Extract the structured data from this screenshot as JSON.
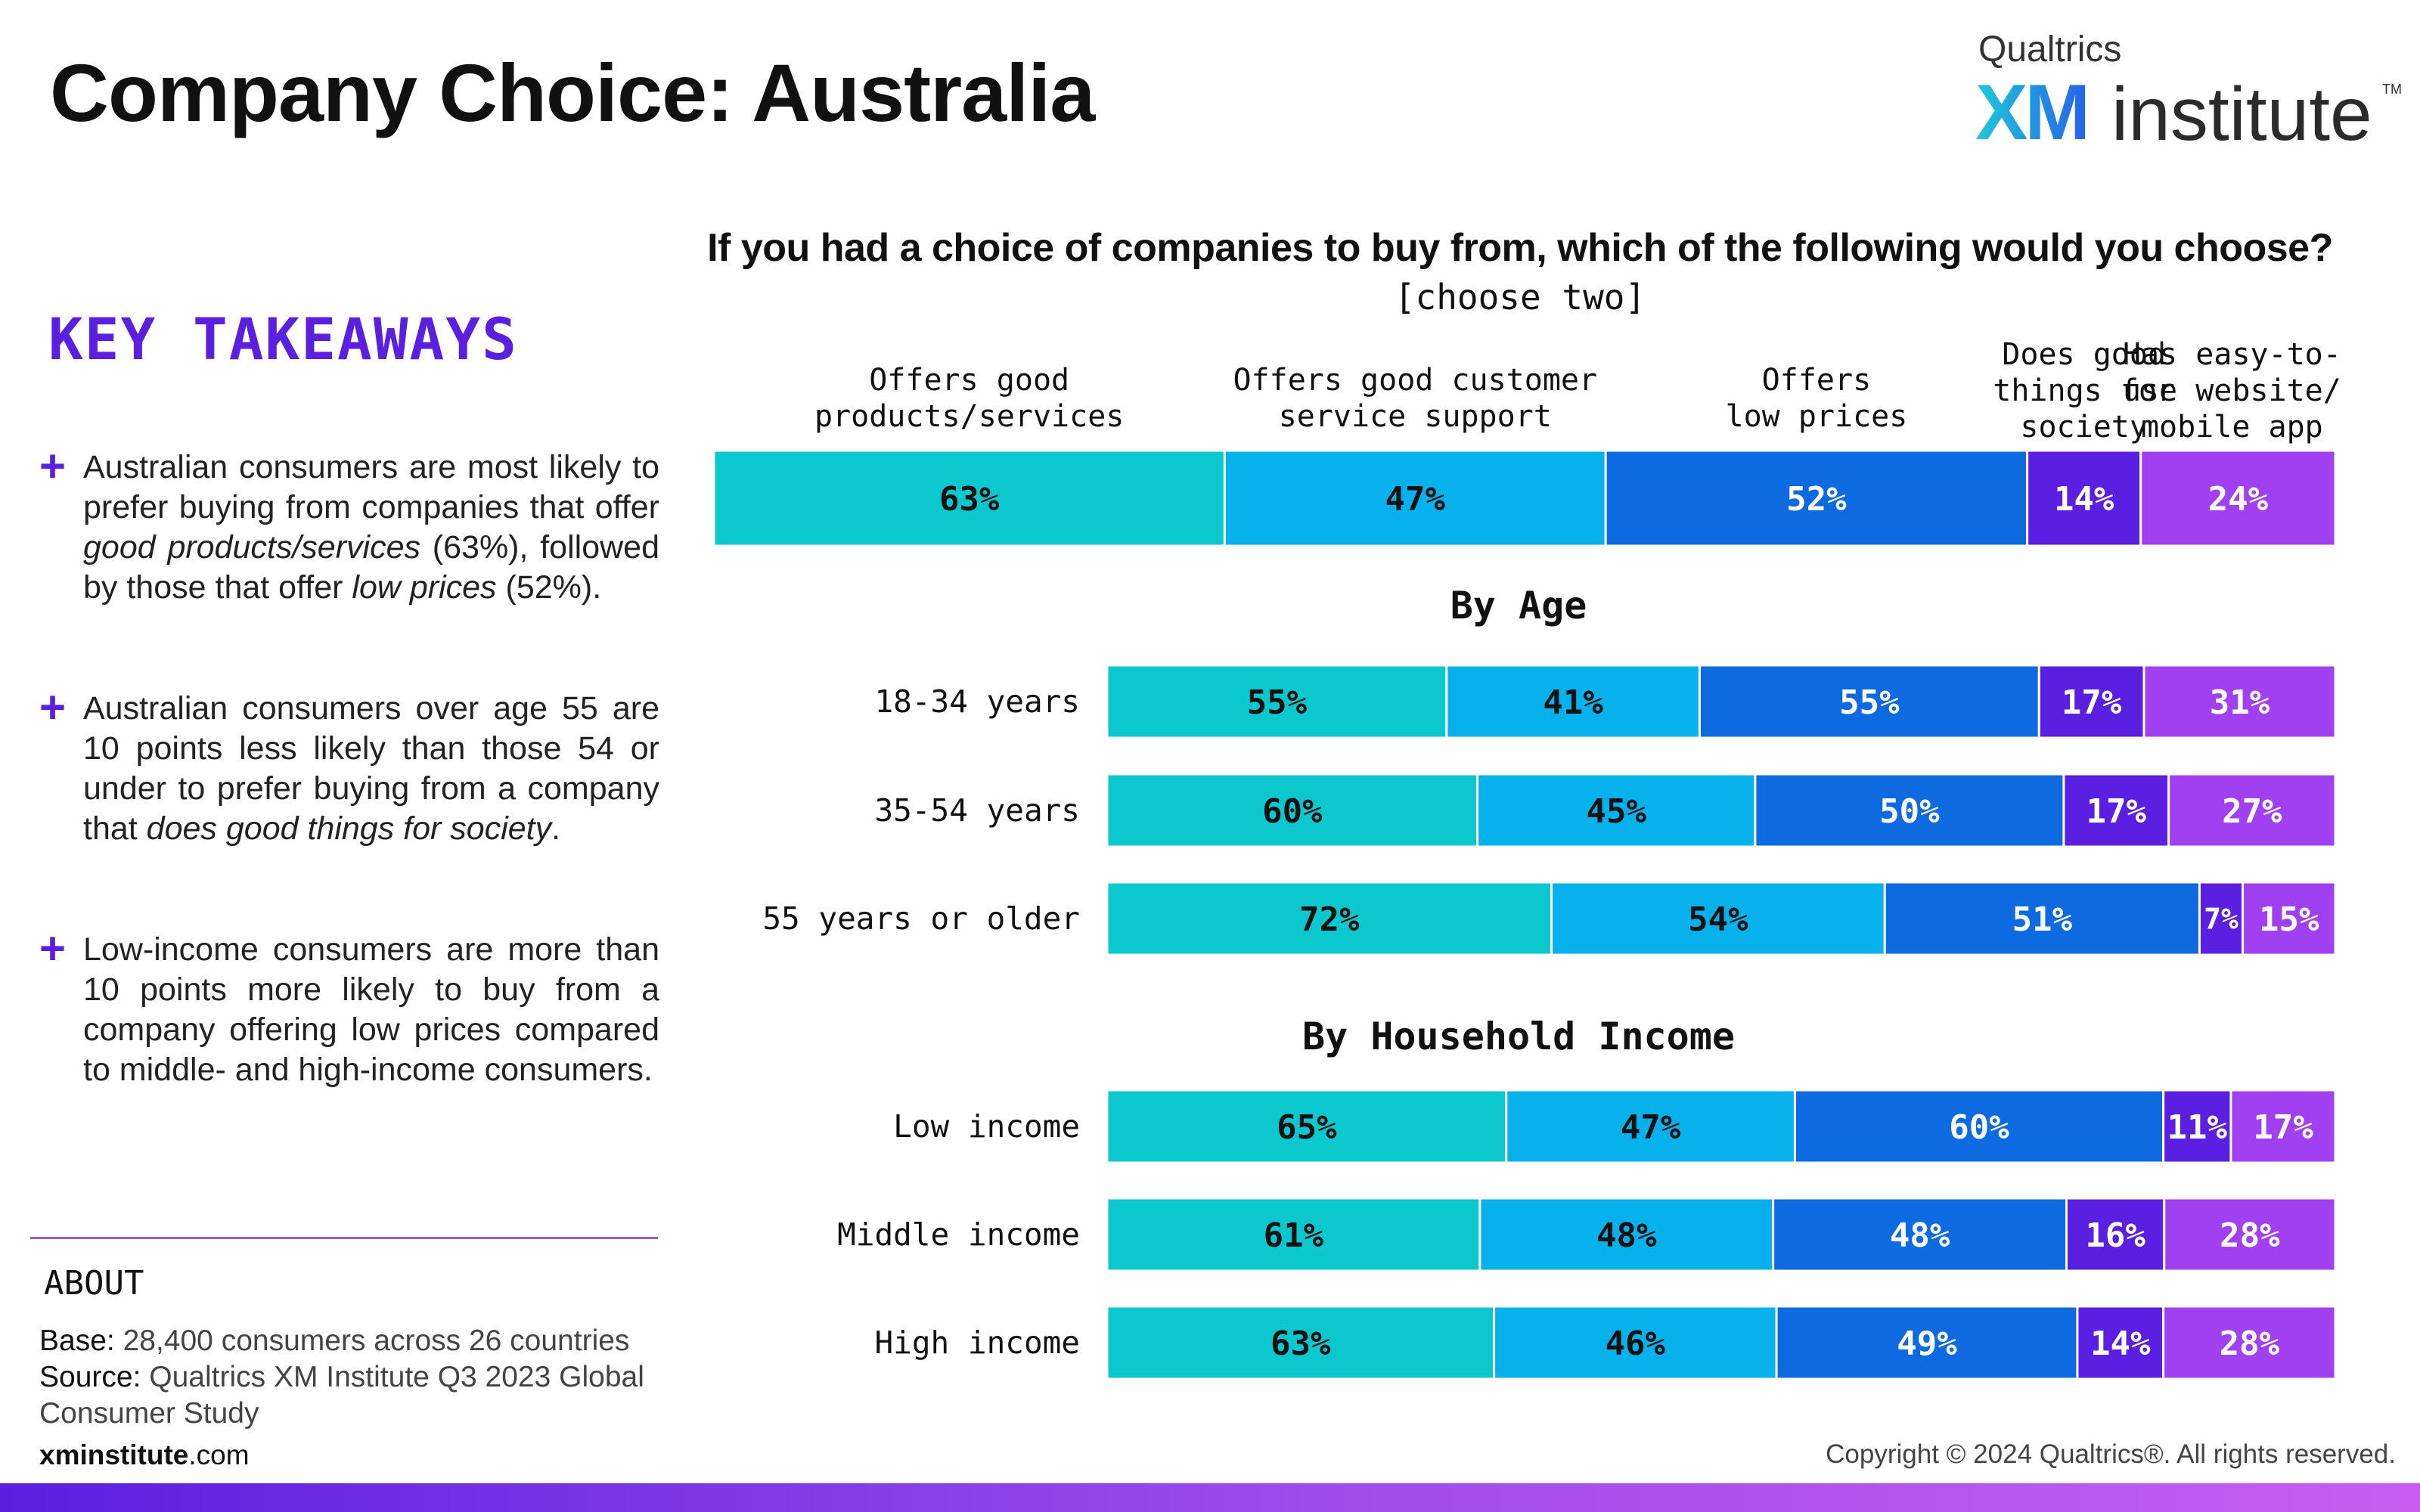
{
  "header": {
    "title": "Company Choice: Australia",
    "logo": {
      "brand": "Qualtrics",
      "xm": "XM",
      "word": "institute",
      "tm": "TM"
    }
  },
  "takeaways": {
    "title": "KEY TAKEAWAYS",
    "items": [
      {
        "pre": "Australian consumers are most likely to prefer buying from companies that offer ",
        "em1": "good products/services",
        "mid": " (63%), followed by those that offer ",
        "em2": "low prices",
        "post": " (52%)."
      },
      {
        "pre": "Australian consumers over age 55 are 10 points less likely than those 54 or under to prefer buying from a company that ",
        "em1": "does good things for society",
        "mid": ".",
        "em2": "",
        "post": ""
      },
      {
        "pre": "Low-income consumers are more than 10 points more likely to buy from a company offering low prices compared to middle- and high-income consumers.",
        "em1": "",
        "mid": "",
        "em2": "",
        "post": ""
      }
    ]
  },
  "about": {
    "title": "ABOUT",
    "base_label": "Base:",
    "base_text": " 28,400 consumers across 26 countries",
    "source_label": "Source:",
    "source_text": " Qualtrics XM Institute Q3 2023 Global Consumer Study"
  },
  "footer": {
    "site_bold": "xminstitute",
    "site_rest": ".com",
    "copyright": "Copyright © 2024 Qualtrics®. All rights reserved."
  },
  "colors": {
    "c1": "#0bc8ce",
    "c2": "#06b1ec",
    "c3": "#0d6ae0",
    "c4": "#5a1fe0",
    "c5": "#a040f0"
  },
  "chart_data": {
    "type": "bar",
    "stacked": true,
    "orientation": "horizontal",
    "title": "If you had a choice of companies to buy from, which of the following would you choose?",
    "subtitle": "[choose two]",
    "series": [
      {
        "name": "Offers good products/services",
        "lines": [
          "Offers good",
          "products/services"
        ],
        "color": "#0bc8ce",
        "text": "#111111"
      },
      {
        "name": "Offers good customer service support",
        "lines": [
          "Offers good customer",
          "service support"
        ],
        "color": "#06b1ec",
        "text": "#111111"
      },
      {
        "name": "Offers low prices",
        "lines": [
          "Offers",
          "low prices"
        ],
        "color": "#0d6ae0",
        "text": "#ffffff"
      },
      {
        "name": "Does good things for society",
        "lines": [
          "Does good",
          "things for",
          "society"
        ],
        "color": "#5a1fe0",
        "text": "#ffffff"
      },
      {
        "name": "Has easy-to-use website/mobile app",
        "lines": [
          "Has easy-to-",
          "use website/",
          "mobile app"
        ],
        "color": "#a040f0",
        "text": "#ffffff"
      }
    ],
    "overall": {
      "label": "",
      "values": [
        63,
        47,
        52,
        14,
        24
      ]
    },
    "groups": [
      {
        "title": "By Age",
        "rows": [
          {
            "label": "18-34 years",
            "values": [
              55,
              41,
              55,
              17,
              31
            ]
          },
          {
            "label": "35-54 years",
            "values": [
              60,
              45,
              50,
              17,
              27
            ]
          },
          {
            "label": "55 years or older",
            "values": [
              72,
              54,
              51,
              7,
              15
            ]
          }
        ]
      },
      {
        "title": "By Household Income",
        "rows": [
          {
            "label": "Low income",
            "values": [
              65,
              47,
              60,
              11,
              17
            ]
          },
          {
            "label": "Middle income",
            "values": [
              61,
              48,
              48,
              16,
              28
            ]
          },
          {
            "label": "High income",
            "values": [
              63,
              46,
              49,
              14,
              28
            ]
          }
        ]
      }
    ],
    "value_suffix": "%",
    "legend_placement": "top",
    "grid": false
  }
}
